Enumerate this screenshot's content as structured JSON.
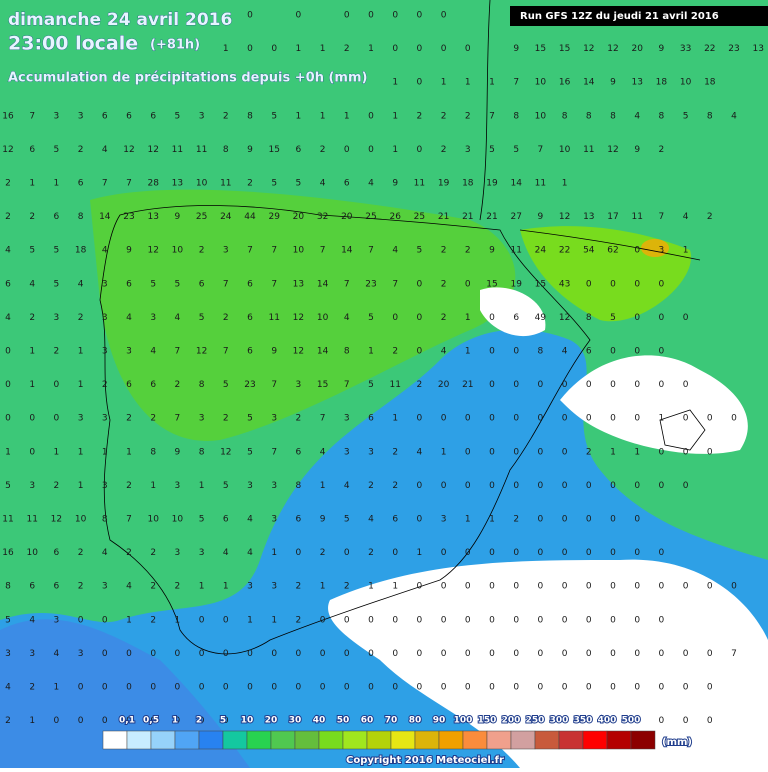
{
  "header": {
    "date": "dimanche 24 avril 2016",
    "time": "23:00 locale",
    "offset": "(+81h)",
    "subtitle": "Accumulation de précipitations depuis +0h (mm)",
    "run": "Run GFS 12Z du jeudi 21 avril 2016"
  },
  "grid": [
    [
      null,
      null,
      null,
      null,
      null,
      null,
      null,
      null,
      null,
      null,
      0,
      null,
      0,
      null,
      0,
      0,
      0,
      0,
      0
    ],
    [
      null,
      null,
      null,
      null,
      null,
      null,
      null,
      null,
      null,
      1,
      0,
      0,
      1,
      1,
      2,
      1,
      0,
      0,
      0,
      0,
      null,
      9,
      15,
      15,
      12,
      12,
      20,
      9,
      33,
      22,
      23,
      13
    ],
    [
      null,
      null,
      null,
      null,
      null,
      null,
      null,
      null,
      null,
      null,
      null,
      null,
      null,
      null,
      null,
      null,
      1,
      0,
      1,
      1,
      1,
      7,
      10,
      16,
      14,
      9,
      13,
      18,
      10,
      18
    ],
    [
      16,
      7,
      3,
      3,
      6,
      6,
      6,
      5,
      3,
      2,
      8,
      5,
      1,
      1,
      1,
      0,
      1,
      2,
      2,
      2,
      7,
      8,
      10,
      8,
      8,
      8,
      4,
      8,
      5,
      8,
      4
    ],
    [
      12,
      6,
      5,
      2,
      4,
      12,
      12,
      11,
      11,
      8,
      9,
      15,
      6,
      2,
      0,
      0,
      1,
      0,
      2,
      3,
      5,
      5,
      7,
      10,
      11,
      12,
      9,
      2
    ],
    [
      2,
      1,
      1,
      6,
      7,
      7,
      28,
      13,
      10,
      11,
      2,
      5,
      5,
      4,
      6,
      4,
      9,
      11,
      19,
      18,
      19,
      14,
      11,
      1
    ],
    [
      2,
      2,
      6,
      8,
      14,
      23,
      13,
      9,
      25,
      24,
      44,
      29,
      20,
      32,
      20,
      25,
      26,
      25,
      21,
      21,
      21,
      27,
      9,
      12,
      13,
      17,
      11,
      7,
      4,
      2
    ],
    [
      4,
      5,
      5,
      18,
      4,
      9,
      12,
      10,
      2,
      3,
      7,
      7,
      10,
      7,
      14,
      7,
      4,
      5,
      2,
      2,
      9,
      11,
      24,
      22,
      54,
      62,
      0,
      3,
      1
    ],
    [
      6,
      4,
      5,
      4,
      3,
      6,
      5,
      5,
      6,
      7,
      6,
      7,
      13,
      14,
      7,
      23,
      7,
      0,
      2,
      0,
      15,
      19,
      15,
      43,
      0,
      0,
      0,
      0
    ],
    [
      4,
      2,
      3,
      2,
      3,
      4,
      3,
      4,
      5,
      2,
      6,
      11,
      12,
      10,
      4,
      5,
      0,
      0,
      2,
      1,
      0,
      6,
      49,
      12,
      8,
      5,
      0,
      0,
      0
    ],
    [
      0,
      1,
      2,
      1,
      3,
      3,
      4,
      7,
      12,
      7,
      6,
      9,
      12,
      14,
      8,
      1,
      2,
      0,
      4,
      1,
      0,
      0,
      8,
      4,
      6,
      0,
      0,
      0
    ],
    [
      0,
      1,
      0,
      1,
      2,
      6,
      6,
      2,
      8,
      5,
      23,
      7,
      3,
      15,
      7,
      5,
      11,
      2,
      20,
      21,
      0,
      0,
      0,
      0,
      0,
      0,
      0,
      0,
      0
    ],
    [
      0,
      0,
      0,
      3,
      3,
      2,
      2,
      7,
      3,
      2,
      5,
      3,
      2,
      7,
      3,
      6,
      1,
      0,
      0,
      0,
      0,
      0,
      0,
      0,
      0,
      0,
      0,
      1,
      0,
      0,
      0
    ],
    [
      1,
      0,
      1,
      1,
      1,
      1,
      8,
      9,
      8,
      12,
      5,
      7,
      6,
      4,
      3,
      3,
      2,
      4,
      1,
      0,
      0,
      0,
      0,
      0,
      2,
      1,
      1,
      0,
      0,
      0
    ],
    [
      5,
      3,
      2,
      1,
      3,
      2,
      1,
      3,
      1,
      5,
      3,
      3,
      8,
      1,
      4,
      2,
      2,
      0,
      0,
      0,
      0,
      0,
      0,
      0,
      0,
      0,
      0,
      0,
      0
    ],
    [
      11,
      11,
      12,
      10,
      8,
      7,
      10,
      10,
      5,
      6,
      4,
      3,
      6,
      9,
      5,
      4,
      6,
      0,
      3,
      1,
      1,
      2,
      0,
      0,
      0,
      0,
      0
    ],
    [
      16,
      10,
      6,
      2,
      4,
      2,
      2,
      3,
      3,
      4,
      4,
      1,
      0,
      2,
      0,
      2,
      0,
      1,
      0,
      0,
      0,
      0,
      0,
      0,
      0,
      0,
      0,
      0
    ],
    [
      8,
      6,
      6,
      2,
      3,
      4,
      2,
      2,
      1,
      1,
      3,
      3,
      2,
      1,
      2,
      1,
      1,
      0,
      0,
      0,
      0,
      0,
      0,
      0,
      0,
      0,
      0,
      0,
      0,
      0,
      0
    ],
    [
      5,
      4,
      3,
      0,
      0,
      1,
      2,
      1,
      0,
      0,
      1,
      1,
      2,
      0,
      0,
      0,
      0,
      0,
      0,
      0,
      0,
      0,
      0,
      0,
      0,
      0,
      0,
      0
    ],
    [
      3,
      3,
      4,
      3,
      0,
      0,
      0,
      0,
      0,
      0,
      0,
      0,
      0,
      0,
      0,
      0,
      0,
      0,
      0,
      0,
      0,
      0,
      0,
      0,
      0,
      0,
      0,
      0,
      0,
      0,
      7
    ],
    [
      4,
      2,
      1,
      0,
      0,
      0,
      0,
      0,
      0,
      0,
      0,
      0,
      0,
      0,
      0,
      0,
      0,
      0,
      0,
      0,
      0,
      0,
      0,
      0,
      0,
      0,
      0,
      0,
      0,
      0
    ],
    [
      2,
      1,
      0,
      0,
      0,
      0,
      0,
      0,
      0,
      0,
      0,
      0,
      0,
      0,
      0,
      0,
      0,
      0,
      0,
      0,
      0,
      0,
      0,
      0,
      0,
      0,
      0,
      0,
      0,
      0
    ]
  ],
  "legend": {
    "labels": [
      "0,1",
      "0,5",
      "1",
      "2",
      "5",
      "10",
      "20",
      "30",
      "40",
      "50",
      "60",
      "70",
      "80",
      "90",
      "100",
      "150",
      "200",
      "250",
      "300",
      "350",
      "400",
      "500"
    ],
    "unit": "(mm)",
    "colors": [
      "#ffffff",
      "#c8ecff",
      "#96d2fa",
      "#50a5f5",
      "#2882f0",
      "#14c8a0",
      "#28d250",
      "#50c850",
      "#64be3c",
      "#78dc1e",
      "#a0e61e",
      "#b4d20a",
      "#e6e614",
      "#dcb40a",
      "#f0a000",
      "#fa8c3c",
      "#f0a08c",
      "#d2a0a0",
      "#c85a3c",
      "#c83232",
      "#ff0000",
      "#b40000",
      "#8c0000",
      "#640032",
      "#9664dc"
    ]
  },
  "footer": {
    "copyright": "Copyright 2016 Meteociel.fr"
  }
}
